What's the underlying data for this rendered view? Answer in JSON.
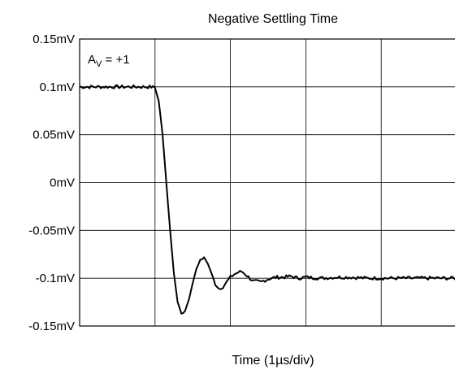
{
  "chart_data": {
    "type": "line",
    "title": "Negative Settling Time",
    "xlabel": "Time (1µs/div)",
    "ylabel": "",
    "annotation": {
      "main": "A",
      "sub": "V",
      "rest": " = +1"
    },
    "y_ticks": [
      {
        "value": 0.15,
        "label": "0.15mV"
      },
      {
        "value": 0.1,
        "label": "0.1mV"
      },
      {
        "value": 0.05,
        "label": "0.05mV"
      },
      {
        "value": 0,
        "label": "0mV"
      },
      {
        "value": -0.05,
        "label": "-0.05mV"
      },
      {
        "value": -0.1,
        "label": "-0.1mV"
      },
      {
        "value": -0.15,
        "label": "-0.15mV"
      }
    ],
    "ylim": [
      -0.15,
      0.15
    ],
    "xlim": [
      0,
      5
    ],
    "x_divisions": 5,
    "grid": true,
    "series": [
      {
        "color": "#000000",
        "x": [
          0,
          0.5,
          0.95,
          1.0,
          1.05,
          1.1,
          1.15,
          1.2,
          1.25,
          1.3,
          1.35,
          1.4,
          1.45,
          1.5,
          1.55,
          1.6,
          1.65,
          1.7,
          1.75,
          1.8,
          1.85,
          1.9,
          1.95,
          2.0,
          2.05,
          2.1,
          2.15,
          2.2,
          2.3,
          2.4,
          2.5,
          2.6,
          2.7,
          2.8,
          2.9,
          3.0,
          3.2,
          3.4,
          3.6,
          3.8,
          4.0,
          4.2,
          4.4,
          4.6,
          4.8,
          5.0
        ],
        "y": [
          0.1,
          0.1,
          0.1,
          0.099,
          0.085,
          0.05,
          0.0,
          -0.05,
          -0.095,
          -0.125,
          -0.137,
          -0.134,
          -0.122,
          -0.105,
          -0.09,
          -0.081,
          -0.079,
          -0.085,
          -0.095,
          -0.106,
          -0.111,
          -0.109,
          -0.104,
          -0.099,
          -0.096,
          -0.094,
          -0.093,
          -0.096,
          -0.103,
          -0.104,
          -0.101,
          -0.099,
          -0.099,
          -0.098,
          -0.1,
          -0.099,
          -0.1,
          -0.099,
          -0.099,
          -0.1,
          -0.1,
          -0.1,
          -0.1,
          -0.1,
          -0.1,
          -0.1
        ]
      }
    ]
  }
}
